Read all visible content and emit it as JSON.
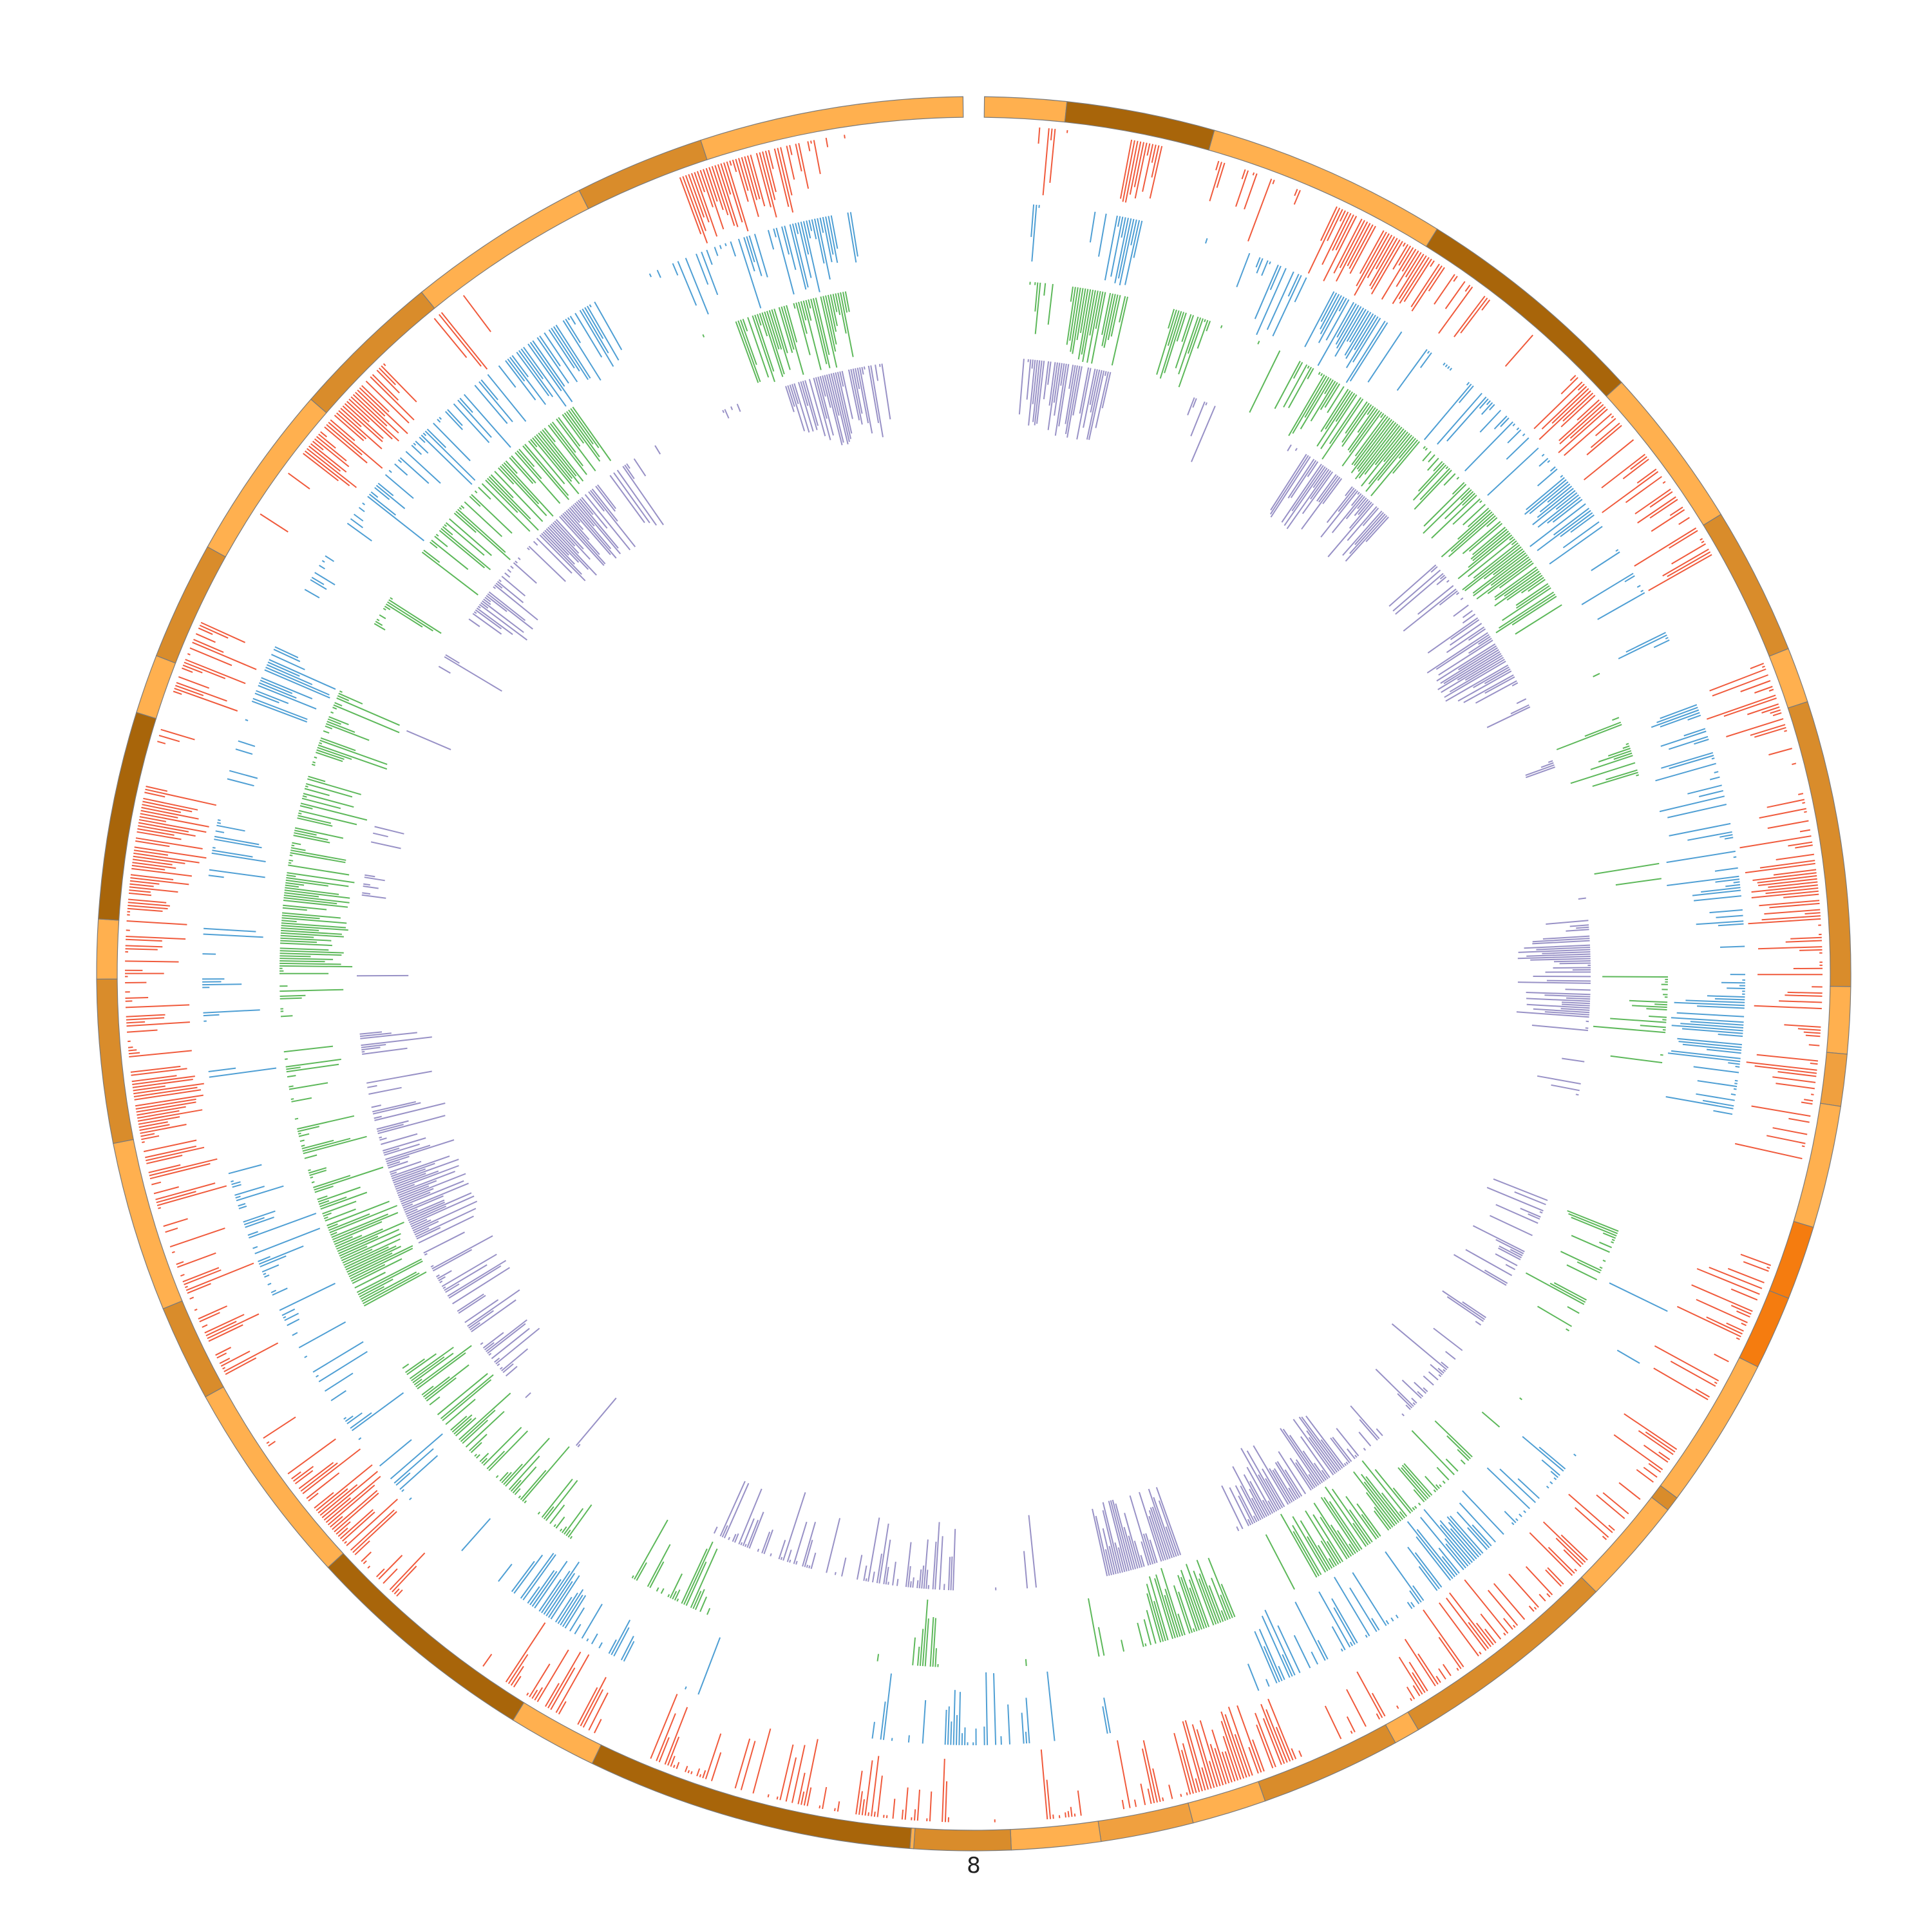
{
  "chart_data": {
    "type": "circos",
    "title": "",
    "chromosome": {
      "label": "8",
      "length_mb": 146,
      "start_mb": 0,
      "end_mb": 146,
      "cytobands": [
        {
          "start": 0,
          "end": 2.2,
          "stain": "gneg"
        },
        {
          "start": 2.2,
          "end": 6.2,
          "stain": "gpos75"
        },
        {
          "start": 6.2,
          "end": 12.7,
          "stain": "gneg"
        },
        {
          "start": 12.7,
          "end": 19.1,
          "stain": "gpos75"
        },
        {
          "start": 19.1,
          "end": 23.5,
          "stain": "gneg"
        },
        {
          "start": 23.5,
          "end": 27.5,
          "stain": "gpos50"
        },
        {
          "start": 27.5,
          "end": 29,
          "stain": "gneg"
        },
        {
          "start": 29,
          "end": 36.7,
          "stain": "gpos50"
        },
        {
          "start": 36.7,
          "end": 38.5,
          "stain": "gneg"
        },
        {
          "start": 38.5,
          "end": 39.9,
          "stain": "gpos25"
        },
        {
          "start": 39.9,
          "end": 43.2,
          "stain": "gneg"
        },
        {
          "start": 43.2,
          "end": 45.2,
          "stain": "acen"
        },
        {
          "start": 45.2,
          "end": 47.2,
          "stain": "acen"
        },
        {
          "start": 47.2,
          "end": 51.3,
          "stain": "gneg"
        },
        {
          "start": 51.3,
          "end": 51.7,
          "stain": "gpos50"
        },
        {
          "start": 51.7,
          "end": 54.6,
          "stain": "gneg"
        },
        {
          "start": 54.6,
          "end": 60.6,
          "stain": "gpos50"
        },
        {
          "start": 60.6,
          "end": 61.3,
          "stain": "gneg"
        },
        {
          "start": 61.3,
          "end": 65.1,
          "stain": "gpos50"
        },
        {
          "start": 65.1,
          "end": 67.1,
          "stain": "gneg"
        },
        {
          "start": 67.1,
          "end": 69.6,
          "stain": "gpos25"
        },
        {
          "start": 69.6,
          "end": 72,
          "stain": "gneg"
        },
        {
          "start": 72,
          "end": 74.6,
          "stain": "gpos50"
        },
        {
          "start": 74.6,
          "end": 74.7,
          "stain": "gneg"
        },
        {
          "start": 74.7,
          "end": 83.5,
          "stain": "gpos75"
        },
        {
          "start": 83.5,
          "end": 85.9,
          "stain": "gneg"
        },
        {
          "start": 85.9,
          "end": 92.3,
          "stain": "gpos75"
        },
        {
          "start": 92.3,
          "end": 97.9,
          "stain": "gneg"
        },
        {
          "start": 97.9,
          "end": 100.5,
          "stain": "gpos50"
        },
        {
          "start": 100.5,
          "end": 105.1,
          "stain": "gneg"
        },
        {
          "start": 105.1,
          "end": 109.5,
          "stain": "gpos50"
        },
        {
          "start": 109.5,
          "end": 111.1,
          "stain": "gneg"
        },
        {
          "start": 111.1,
          "end": 116.7,
          "stain": "gpos75"
        },
        {
          "start": 116.7,
          "end": 118.3,
          "stain": "gneg"
        },
        {
          "start": 118.3,
          "end": 121.5,
          "stain": "gpos50"
        },
        {
          "start": 121.5,
          "end": 126.3,
          "stain": "gneg"
        },
        {
          "start": 126.3,
          "end": 130.4,
          "stain": "gpos50"
        },
        {
          "start": 130.4,
          "end": 135.4,
          "stain": "gneg"
        },
        {
          "start": 135.4,
          "end": 138.9,
          "stain": "gpos50"
        },
        {
          "start": 138.9,
          "end": 146,
          "stain": "gneg"
        }
      ]
    },
    "band_colors": {
      "gneg": "#ffb04f",
      "gpos25": "#f0a03f",
      "gpos50": "#d98c2b",
      "gpos75": "#a8650a",
      "acen": "#f57c0f"
    },
    "series": [
      {
        "color": "#f05a3c",
        "ylim": [
          0,
          1
        ],
        "gaps": [
          [
            0,
            1.5
          ],
          [
            5,
            6.5
          ],
          [
            26,
            27.5
          ],
          [
            41.5,
            44.5
          ],
          [
            69,
            70
          ],
          [
            120,
            121.5
          ],
          [
            135,
            136
          ],
          [
            143,
            146
          ]
        ],
        "hotspots": [
          [
            4,
            6
          ],
          [
            10,
            13
          ],
          [
            18,
            20
          ],
          [
            33,
            35
          ],
          [
            64,
            67
          ],
          [
            92,
            95
          ],
          [
            105,
            107
          ],
          [
            112,
            115
          ],
          [
            125,
            128
          ],
          [
            138,
            141
          ]
        ],
        "density": 0.55
      },
      {
        "color": "#4f9fd4",
        "ylim": [
          0,
          1
        ],
        "gaps": [
          [
            0,
            1.5
          ],
          [
            5,
            6.5
          ],
          [
            26,
            28
          ],
          [
            41,
            45
          ],
          [
            69,
            70.5
          ],
          [
            79,
            81
          ],
          [
            120,
            121.5
          ],
          [
            135,
            136
          ],
          [
            143,
            146
          ]
        ],
        "hotspots": [
          [
            4,
            6
          ],
          [
            11,
            13
          ],
          [
            20,
            22
          ],
          [
            37,
            39
          ],
          [
            56,
            58
          ],
          [
            86,
            88
          ],
          [
            118,
            120
          ],
          [
            131,
            133
          ],
          [
            140,
            142
          ]
        ],
        "density": 0.45
      },
      {
        "color": "#5db85a",
        "ylim": [
          0,
          1
        ],
        "gaps": [
          [
            0,
            1.5
          ],
          [
            5,
            6.5
          ],
          [
            26,
            27.5
          ],
          [
            41.5,
            44.5
          ],
          [
            69,
            70
          ],
          [
            80,
            81
          ],
          [
            120,
            121.5
          ],
          [
            135,
            136
          ],
          [
            143,
            146
          ]
        ],
        "hotspots": [
          [
            3,
            7
          ],
          [
            12,
            16
          ],
          [
            19,
            23
          ],
          [
            57,
            61
          ],
          [
            64,
            67
          ],
          [
            98,
            101
          ],
          [
            110,
            113
          ],
          [
            128,
            132
          ],
          [
            138,
            142
          ]
        ],
        "density": 0.6
      },
      {
        "color": "#9891c6",
        "ylim": [
          0,
          1
        ],
        "gaps": [
          [
            0,
            1.5
          ],
          [
            5,
            6.5
          ],
          [
            26,
            28
          ],
          [
            41,
            45
          ],
          [
            69,
            70.5
          ],
          [
            120,
            121.5
          ],
          [
            135,
            136
          ],
          [
            143,
            146
          ]
        ],
        "hotspots": [
          [
            2,
            5
          ],
          [
            13,
            17
          ],
          [
            22,
            25
          ],
          [
            35,
            38
          ],
          [
            58,
            62
          ],
          [
            65,
            68
          ],
          [
            99,
            102
          ],
          [
            128,
            131
          ],
          [
            139,
            142
          ]
        ],
        "density": 0.55
      }
    ]
  }
}
